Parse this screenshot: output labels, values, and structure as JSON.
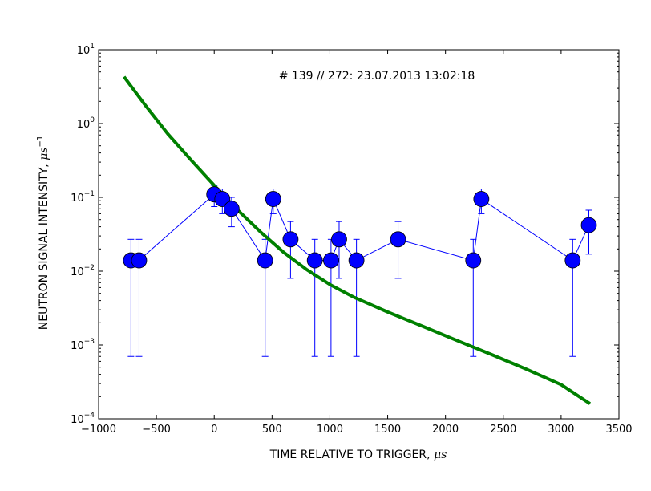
{
  "chart_data": {
    "type": "scatter",
    "title": "",
    "annotation": "# 139 // 272: 23.07.2013 13:02:18",
    "xlabel": "TIME RELATIVE TO TRIGGER, ",
    "xlabel_unit": "μs",
    "ylabel": "NEUTRON SIGNAL INTENSITY, ",
    "ylabel_unit": "μs",
    "ylabel_exp": "−1",
    "xlim": [
      -1000,
      3500
    ],
    "ylim": [
      0.0001,
      10
    ],
    "yscale": "log",
    "grid": false,
    "xticks": [
      -1000,
      -500,
      0,
      500,
      1000,
      1500,
      2000,
      2500,
      3000,
      3500
    ],
    "xtick_labels": [
      "−1000",
      "−500",
      "0",
      "500",
      "1000",
      "1500",
      "2000",
      "2500",
      "3000",
      "3500"
    ],
    "yticks": [
      {
        "value": 0.0001,
        "exp": "−4"
      },
      {
        "value": 0.001,
        "exp": "−3"
      },
      {
        "value": 0.01,
        "exp": "−2"
      },
      {
        "value": 0.1,
        "exp": "−1"
      },
      {
        "value": 1,
        "exp": "0"
      },
      {
        "value": 10,
        "exp": "1"
      }
    ],
    "ytick_base": "10",
    "series": [
      {
        "kind": "points-with-errorbars",
        "color": "#0000ff",
        "points": [
          {
            "x": -720,
            "y": 0.014,
            "lo": 0.0007,
            "hi": 0.027
          },
          {
            "x": -650,
            "y": 0.014,
            "lo": 0.0007,
            "hi": 0.027
          },
          {
            "x": 0,
            "y": 0.11,
            "lo": 0.075,
            "hi": 0.145
          },
          {
            "x": 70,
            "y": 0.095,
            "lo": 0.06,
            "hi": 0.13
          },
          {
            "x": 150,
            "y": 0.07,
            "lo": 0.04,
            "hi": 0.1
          },
          {
            "x": 440,
            "y": 0.014,
            "lo": 0.0007,
            "hi": 0.027
          },
          {
            "x": 510,
            "y": 0.095,
            "lo": 0.06,
            "hi": 0.13
          },
          {
            "x": 660,
            "y": 0.027,
            "lo": 0.008,
            "hi": 0.047
          },
          {
            "x": 870,
            "y": 0.014,
            "lo": 0.0007,
            "hi": 0.027
          },
          {
            "x": 1010,
            "y": 0.014,
            "lo": 0.0007,
            "hi": 0.027
          },
          {
            "x": 1080,
            "y": 0.027,
            "lo": 0.008,
            "hi": 0.047
          },
          {
            "x": 1230,
            "y": 0.014,
            "lo": 0.0007,
            "hi": 0.027
          },
          {
            "x": 1590,
            "y": 0.027,
            "lo": 0.008,
            "hi": 0.047
          },
          {
            "x": 2240,
            "y": 0.014,
            "lo": 0.0007,
            "hi": 0.027
          },
          {
            "x": 2310,
            "y": 0.095,
            "lo": 0.06,
            "hi": 0.13
          },
          {
            "x": 3100,
            "y": 0.014,
            "lo": 0.0007,
            "hi": 0.027
          },
          {
            "x": 3240,
            "y": 0.042,
            "lo": 0.017,
            "hi": 0.067
          }
        ]
      },
      {
        "kind": "line",
        "color": "#008000",
        "x": [
          -780,
          -600,
          -400,
          -200,
          0,
          200,
          400,
          600,
          800,
          1000,
          1200,
          1500,
          1800,
          2100,
          2400,
          2700,
          3000,
          3250
        ],
        "y": [
          4.3,
          1.8,
          0.72,
          0.32,
          0.145,
          0.068,
          0.034,
          0.018,
          0.0105,
          0.0066,
          0.0045,
          0.0028,
          0.0018,
          0.00115,
          0.00074,
          0.00047,
          0.00029,
          0.00016
        ]
      }
    ]
  }
}
